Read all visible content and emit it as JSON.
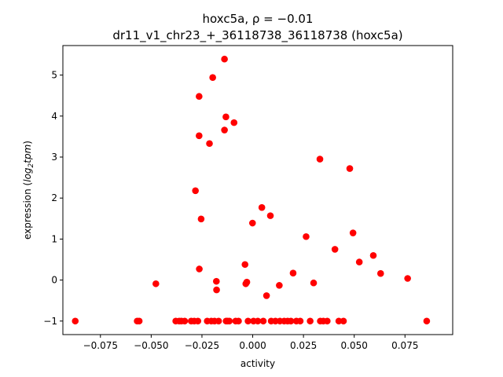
{
  "chart_data": {
    "type": "scatter",
    "title_line1": "hoxc5a, ρ = −0.01",
    "title_line2": "dr11_v1_chr23_+_36118738_36118738 (hoxc5a)",
    "xlabel": "activity",
    "ylabel_prefix": "expression (",
    "ylabel_math": "log",
    "ylabel_sub": "2",
    "ylabel_math2": "tpm",
    "ylabel_suffix": ")",
    "xlim": [
      -0.0935,
      0.0985
    ],
    "ylim": [
      -1.33,
      5.72
    ],
    "xticks": [
      -0.075,
      -0.05,
      -0.025,
      0.0,
      0.025,
      0.05,
      0.075
    ],
    "xtick_labels": [
      "−0.075",
      "−0.050",
      "−0.025",
      "0.000",
      "0.025",
      "0.050",
      "0.075"
    ],
    "yticks": [
      -1,
      0,
      1,
      2,
      3,
      4,
      5
    ],
    "ytick_labels": [
      "−1",
      "0",
      "1",
      "2",
      "3",
      "4",
      "5"
    ],
    "grid": false,
    "legend": "none",
    "marker_color": "#ff0000",
    "points": [
      {
        "x": -0.0874,
        "y": -1.0
      },
      {
        "x": -0.0569,
        "y": -1.0
      },
      {
        "x": -0.0559,
        "y": -1.0
      },
      {
        "x": -0.0477,
        "y": -0.09
      },
      {
        "x": -0.0379,
        "y": -1.0
      },
      {
        "x": -0.0362,
        "y": -1.0
      },
      {
        "x": -0.0351,
        "y": -1.0
      },
      {
        "x": -0.0335,
        "y": -1.0
      },
      {
        "x": -0.0303,
        "y": -1.0
      },
      {
        "x": -0.0288,
        "y": -1.0
      },
      {
        "x": -0.0282,
        "y": 2.18
      },
      {
        "x": -0.027,
        "y": -1.0
      },
      {
        "x": -0.0264,
        "y": 4.48
      },
      {
        "x": -0.0264,
        "y": 3.52
      },
      {
        "x": -0.0263,
        "y": 0.27
      },
      {
        "x": -0.0254,
        "y": 1.49
      },
      {
        "x": -0.0224,
        "y": -1.0
      },
      {
        "x": -0.0213,
        "y": 3.33
      },
      {
        "x": -0.0204,
        "y": -1.0
      },
      {
        "x": -0.0197,
        "y": 4.94
      },
      {
        "x": -0.0188,
        "y": -1.0
      },
      {
        "x": -0.0179,
        "y": -0.03
      },
      {
        "x": -0.0178,
        "y": -0.24
      },
      {
        "x": -0.0168,
        "y": -1.0
      },
      {
        "x": -0.0139,
        "y": 5.39
      },
      {
        "x": -0.0139,
        "y": 3.66
      },
      {
        "x": -0.0132,
        "y": 3.98
      },
      {
        "x": -0.0131,
        "y": -1.0
      },
      {
        "x": -0.0125,
        "y": -1.0
      },
      {
        "x": -0.0115,
        "y": -1.0
      },
      {
        "x": -0.0092,
        "y": 3.84
      },
      {
        "x": -0.0084,
        "y": -1.0
      },
      {
        "x": -0.007,
        "y": -1.0
      },
      {
        "x": -0.0038,
        "y": 0.38
      },
      {
        "x": -0.0034,
        "y": -0.09
      },
      {
        "x": -0.0029,
        "y": -0.05
      },
      {
        "x": -0.0023,
        "y": -1.0
      },
      {
        "x": -0.0001,
        "y": 1.39
      },
      {
        "x": 0.0004,
        "y": -1.0
      },
      {
        "x": 0.0025,
        "y": -1.0
      },
      {
        "x": 0.0045,
        "y": 1.77
      },
      {
        "x": 0.0052,
        "y": -1.0
      },
      {
        "x": 0.0068,
        "y": -0.38
      },
      {
        "x": 0.0087,
        "y": 1.57
      },
      {
        "x": 0.0091,
        "y": -1.0
      },
      {
        "x": 0.0112,
        "y": -1.0
      },
      {
        "x": 0.0131,
        "y": -0.13
      },
      {
        "x": 0.0134,
        "y": -1.0
      },
      {
        "x": 0.0155,
        "y": -1.0
      },
      {
        "x": 0.0172,
        "y": -1.0
      },
      {
        "x": 0.0188,
        "y": -1.0
      },
      {
        "x": 0.0199,
        "y": 0.17
      },
      {
        "x": 0.0215,
        "y": -1.0
      },
      {
        "x": 0.0234,
        "y": -1.0
      },
      {
        "x": 0.0263,
        "y": 1.06
      },
      {
        "x": 0.0283,
        "y": -1.0
      },
      {
        "x": 0.03,
        "y": -0.07
      },
      {
        "x": 0.0331,
        "y": 2.95
      },
      {
        "x": 0.0333,
        "y": -1.0
      },
      {
        "x": 0.0348,
        "y": -1.0
      },
      {
        "x": 0.0367,
        "y": -1.0
      },
      {
        "x": 0.0405,
        "y": 0.75
      },
      {
        "x": 0.0424,
        "y": -1.0
      },
      {
        "x": 0.0447,
        "y": -1.0
      },
      {
        "x": 0.0478,
        "y": 2.72
      },
      {
        "x": 0.0494,
        "y": 1.15
      },
      {
        "x": 0.0525,
        "y": 0.44
      },
      {
        "x": 0.0594,
        "y": 0.6
      },
      {
        "x": 0.063,
        "y": 0.16
      },
      {
        "x": 0.0763,
        "y": 0.04
      },
      {
        "x": 0.0857,
        "y": -1.0
      }
    ]
  }
}
